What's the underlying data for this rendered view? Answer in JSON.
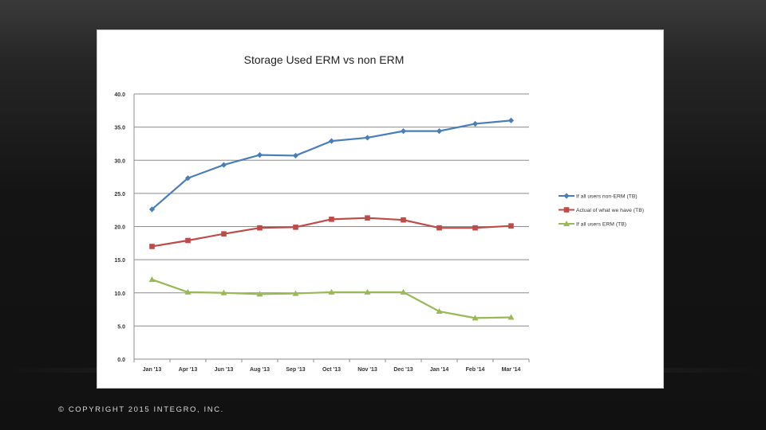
{
  "footer": {
    "copyright": "© COPYRIGHT 2015 INTEGRO, INC."
  },
  "colors": {
    "series_blue": "#4a7ebb",
    "series_red": "#be4b48",
    "series_green": "#98b954",
    "gridline": "#8c8c8c"
  },
  "chart_data": {
    "type": "line",
    "title": "Storage Used ERM vs non ERM",
    "xlabel": "",
    "ylabel": "",
    "ylim": [
      0,
      40
    ],
    "yticks": [
      "0.0",
      "5.0",
      "10.0",
      "15.0",
      "20.0",
      "25.0",
      "30.0",
      "35.0",
      "40.0"
    ],
    "grid": true,
    "legend_position": "right",
    "categories": [
      "Jan '13",
      "Apr '13",
      "Jun '13",
      "Aug '13",
      "Sep '13",
      "Oct '13",
      "Nov '13",
      "Dec '13",
      "Jan '14",
      "Feb '14",
      "Mar '14"
    ],
    "series": [
      {
        "name": "If all users non-ERM (TB)",
        "marker": "diamond",
        "color": "#4a7ebb",
        "values": [
          22.6,
          27.3,
          29.3,
          30.8,
          30.7,
          32.9,
          33.4,
          34.4,
          34.4,
          35.5,
          36.0
        ]
      },
      {
        "name": "Actual of what we have (TB)",
        "marker": "square",
        "color": "#be4b48",
        "values": [
          17.0,
          17.9,
          18.9,
          19.8,
          19.9,
          21.1,
          21.3,
          21.0,
          19.8,
          19.8,
          20.1
        ]
      },
      {
        "name": "If all users ERM (TB)",
        "marker": "triangle",
        "color": "#98b954",
        "values": [
          12.0,
          10.1,
          10.0,
          9.8,
          9.9,
          10.1,
          10.1,
          10.1,
          7.2,
          6.2,
          6.3
        ]
      }
    ]
  }
}
